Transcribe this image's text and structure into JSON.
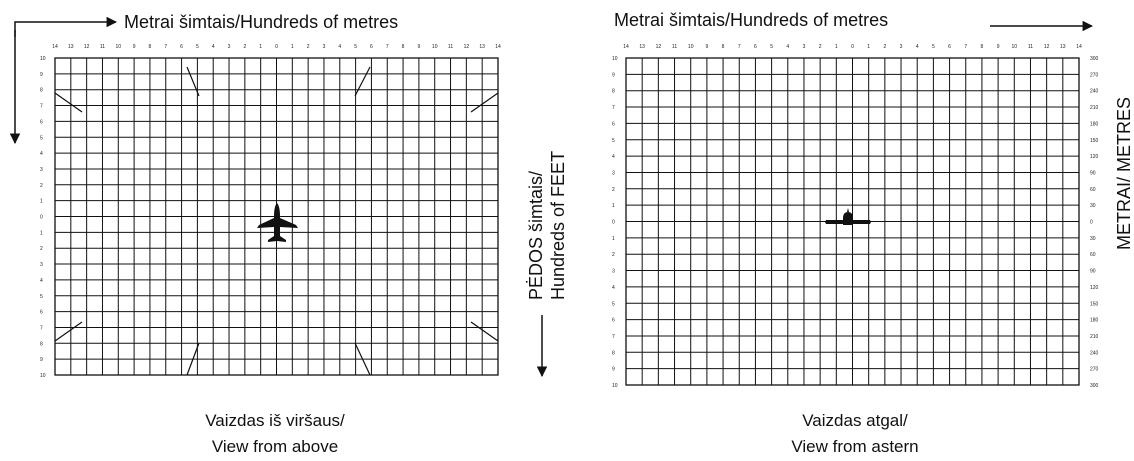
{
  "left_panel": {
    "top_title": "Metrai šimtais/Hundreds of metres",
    "side_title_1": "PĖDOS šimtais/",
    "side_title_2": "Hundreds of FEET",
    "x_ticks": [
      "14",
      "13",
      "12",
      "11",
      "10",
      "9",
      "8",
      "7",
      "6",
      "5",
      "4",
      "3",
      "2",
      "1",
      "0",
      "1",
      "2",
      "3",
      "4",
      "5",
      "6",
      "7",
      "8",
      "9",
      "10",
      "11",
      "12",
      "13",
      "14"
    ],
    "y_ticks": [
      "10",
      "9",
      "8",
      "7",
      "6",
      "5",
      "4",
      "3",
      "2",
      "1",
      "0",
      "1",
      "2",
      "3",
      "4",
      "5",
      "6",
      "7",
      "8",
      "9",
      "10"
    ],
    "caption_1": "Vaizdas iš viršaus/",
    "caption_2": "View from above",
    "aircraft": "aircraft-top-view-icon"
  },
  "right_panel": {
    "top_title": "Metrai šimtais/Hundreds of metres",
    "side_title": "METRAI/ METRES",
    "x_ticks": [
      "14",
      "13",
      "12",
      "11",
      "10",
      "9",
      "8",
      "7",
      "6",
      "5",
      "4",
      "3",
      "2",
      "1",
      "0",
      "1",
      "2",
      "3",
      "4",
      "5",
      "6",
      "7",
      "8",
      "9",
      "10",
      "11",
      "12",
      "13",
      "14"
    ],
    "y_ticks_left": [
      "10",
      "9",
      "8",
      "7",
      "6",
      "5",
      "4",
      "3",
      "2",
      "1",
      "0",
      "1",
      "2",
      "3",
      "4",
      "5",
      "6",
      "7",
      "8",
      "9",
      "10"
    ],
    "y_ticks_right": [
      "300",
      "270",
      "240",
      "210",
      "180",
      "150",
      "120",
      "90",
      "60",
      "30",
      "0",
      "30",
      "60",
      "90",
      "120",
      "150",
      "180",
      "210",
      "240",
      "270",
      "300"
    ],
    "caption_1": "Vaizdas atgal/",
    "caption_2": "View from astern",
    "aircraft": "aircraft-rear-view-icon"
  },
  "colors": {
    "ink": "#111111",
    "background": "#ffffff"
  }
}
